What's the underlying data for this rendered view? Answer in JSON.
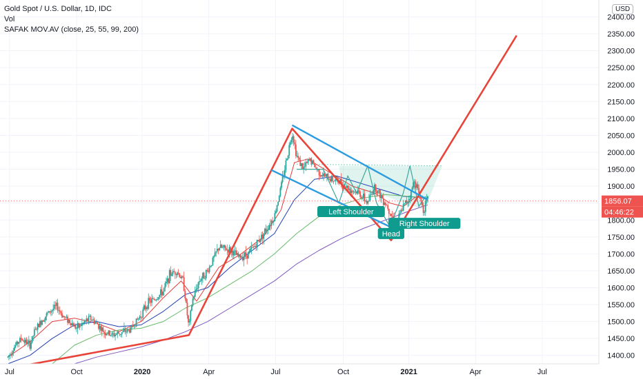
{
  "header": {
    "symbol_line": "Gold Spot / U.S. Dollar, 1D, IDC",
    "vol_label": "Vol",
    "indicator_line": "SAFAK  MOV.AV (close, 25, 55, 99, 200)",
    "currency": "USD"
  },
  "colors": {
    "up_candle": "#26a69a",
    "down_candle": "#ef5350",
    "ma25": "#e53935",
    "ma55": "#1e3fb5",
    "ma99": "#66bb6a",
    "ma200": "#7e57c2",
    "trend_line": "#e8443a",
    "channel_line": "#2b9be0",
    "pattern_fill": "#7fd1c1",
    "label_bg": "#0f9b8e",
    "price_tag": "#ef5350"
  },
  "chart_data": {
    "type": "candlestick",
    "ylim": [
      1375,
      2450
    ],
    "y_ticks": [
      1400,
      1450,
      1500,
      1550,
      1600,
      1650,
      1700,
      1750,
      1800,
      1850,
      1900,
      1950,
      2000,
      2050,
      2100,
      2150,
      2200,
      2250,
      2300,
      2350,
      2400
    ],
    "x_ticks": [
      {
        "label": "Jul",
        "t": 0.08
      },
      {
        "label": "Oct",
        "t": 3.1
      },
      {
        "label": "2020",
        "t": 6.05
      },
      {
        "label": "Apr",
        "t": 9.05
      },
      {
        "label": "Jul",
        "t": 12.05
      },
      {
        "label": "Oct",
        "t": 15.1
      },
      {
        "label": "2021",
        "t": 18.05
      },
      {
        "label": "Apr",
        "t": 21.05
      },
      {
        "label": "Jul",
        "t": 24.05
      }
    ],
    "xlim": [
      -0.35,
      26.6
    ],
    "last_price": "1856.07",
    "countdown": "04:46:22",
    "price_path": [
      [
        0.0,
        1395
      ],
      [
        0.35,
        1430
      ],
      [
        0.6,
        1450
      ],
      [
        1.0,
        1430
      ],
      [
        1.2,
        1470
      ],
      [
        1.6,
        1510
      ],
      [
        1.9,
        1530
      ],
      [
        2.2,
        1545
      ],
      [
        2.5,
        1515
      ],
      [
        2.8,
        1500
      ],
      [
        3.1,
        1480
      ],
      [
        3.4,
        1495
      ],
      [
        3.7,
        1510
      ],
      [
        4.0,
        1495
      ],
      [
        4.3,
        1470
      ],
      [
        4.7,
        1460
      ],
      [
        5.0,
        1465
      ],
      [
        5.5,
        1475
      ],
      [
        6.0,
        1520
      ],
      [
        6.3,
        1555
      ],
      [
        6.7,
        1570
      ],
      [
        7.0,
        1590
      ],
      [
        7.3,
        1640
      ],
      [
        7.6,
        1650
      ],
      [
        7.9,
        1620
      ],
      [
        8.15,
        1480
      ],
      [
        8.3,
        1560
      ],
      [
        8.6,
        1620
      ],
      [
        9.0,
        1650
      ],
      [
        9.5,
        1720
      ],
      [
        10.0,
        1710
      ],
      [
        10.4,
        1690
      ],
      [
        10.8,
        1700
      ],
      [
        11.2,
        1730
      ],
      [
        11.6,
        1770
      ],
      [
        12.0,
        1810
      ],
      [
        12.3,
        1900
      ],
      [
        12.55,
        1980
      ],
      [
        12.8,
        2060
      ],
      [
        13.0,
        1990
      ],
      [
        13.3,
        1950
      ],
      [
        13.6,
        1980
      ],
      [
        13.9,
        1950
      ],
      [
        14.2,
        1930
      ],
      [
        14.6,
        1920
      ],
      [
        15.0,
        1910
      ],
      [
        15.4,
        1890
      ],
      [
        15.8,
        1880
      ],
      [
        16.2,
        1850
      ],
      [
        16.5,
        1900
      ],
      [
        16.8,
        1870
      ],
      [
        17.1,
        1840
      ],
      [
        17.3,
        1810
      ],
      [
        17.5,
        1790
      ],
      [
        17.8,
        1840
      ],
      [
        18.1,
        1870
      ],
      [
        18.3,
        1920
      ],
      [
        18.5,
        1880
      ],
      [
        18.7,
        1830
      ],
      [
        18.9,
        1860
      ]
    ],
    "moving_averages": [
      {
        "name": "25",
        "points": [
          [
            0.0,
            1395
          ],
          [
            1.0,
            1440
          ],
          [
            2.0,
            1500
          ],
          [
            3.0,
            1510
          ],
          [
            4.0,
            1495
          ],
          [
            5.0,
            1470
          ],
          [
            6.0,
            1500
          ],
          [
            7.0,
            1570
          ],
          [
            7.8,
            1620
          ],
          [
            8.5,
            1560
          ],
          [
            9.5,
            1660
          ],
          [
            10.5,
            1700
          ],
          [
            11.5,
            1750
          ],
          [
            12.3,
            1830
          ],
          [
            12.9,
            1970
          ],
          [
            13.5,
            1980
          ],
          [
            14.5,
            1940
          ],
          [
            15.5,
            1900
          ],
          [
            16.5,
            1880
          ],
          [
            17.2,
            1850
          ],
          [
            17.8,
            1840
          ],
          [
            18.4,
            1870
          ],
          [
            18.9,
            1860
          ]
        ]
      },
      {
        "name": "55",
        "points": [
          [
            0.0,
            1375
          ],
          [
            1.0,
            1400
          ],
          [
            2.0,
            1450
          ],
          [
            3.0,
            1490
          ],
          [
            4.0,
            1500
          ],
          [
            5.0,
            1485
          ],
          [
            6.0,
            1490
          ],
          [
            7.0,
            1530
          ],
          [
            8.0,
            1580
          ],
          [
            9.0,
            1600
          ],
          [
            10.0,
            1660
          ],
          [
            11.0,
            1710
          ],
          [
            12.0,
            1760
          ],
          [
            12.9,
            1860
          ],
          [
            13.8,
            1920
          ],
          [
            14.8,
            1930
          ],
          [
            15.8,
            1910
          ],
          [
            16.8,
            1890
          ],
          [
            17.8,
            1870
          ],
          [
            18.9,
            1865
          ]
        ]
      },
      {
        "name": "99",
        "points": [
          [
            2.0,
            1375
          ],
          [
            3.0,
            1430
          ],
          [
            4.0,
            1460
          ],
          [
            5.0,
            1475
          ],
          [
            6.0,
            1480
          ],
          [
            7.0,
            1500
          ],
          [
            8.0,
            1540
          ],
          [
            9.0,
            1570
          ],
          [
            10.0,
            1610
          ],
          [
            11.0,
            1650
          ],
          [
            12.0,
            1700
          ],
          [
            13.0,
            1760
          ],
          [
            14.0,
            1810
          ],
          [
            15.0,
            1845
          ],
          [
            16.0,
            1865
          ],
          [
            17.0,
            1875
          ],
          [
            18.0,
            1870
          ],
          [
            18.9,
            1865
          ]
        ]
      },
      {
        "name": "200",
        "points": [
          [
            3.0,
            1375
          ],
          [
            4.0,
            1395
          ],
          [
            5.0,
            1410
          ],
          [
            6.0,
            1425
          ],
          [
            7.0,
            1445
          ],
          [
            8.0,
            1470
          ],
          [
            9.0,
            1500
          ],
          [
            10.0,
            1540
          ],
          [
            11.0,
            1580
          ],
          [
            12.0,
            1620
          ],
          [
            13.0,
            1670
          ],
          [
            14.0,
            1710
          ],
          [
            15.0,
            1745
          ],
          [
            16.0,
            1775
          ],
          [
            17.0,
            1800
          ],
          [
            18.0,
            1825
          ],
          [
            18.9,
            1845
          ]
        ]
      }
    ],
    "drawings": {
      "trend_line": [
        [
          -0.1,
          1360
        ],
        [
          8.15,
          1460
        ],
        [
          12.8,
          2070
        ],
        [
          17.25,
          1740
        ],
        [
          22.9,
          2345
        ]
      ],
      "channel_upper": [
        [
          12.8,
          2080
        ],
        [
          18.9,
          1860
        ]
      ],
      "channel_lower": [
        [
          11.85,
          1948
        ],
        [
          17.2,
          1780
        ]
      ],
      "pattern_fill": [
        [
          14.9,
          1960
        ],
        [
          16.9,
          1960
        ],
        [
          19.55,
          1960
        ],
        [
          18.75,
          1830
        ],
        [
          16.6,
          1880
        ],
        [
          15.1,
          1880
        ]
      ],
      "pattern_zigzag": [
        [
          13.0,
          1950
        ],
        [
          14.2,
          1950
        ],
        [
          14.9,
          1850
        ],
        [
          15.3,
          1930
        ],
        [
          15.7,
          1880
        ],
        [
          16.2,
          1960
        ],
        [
          16.6,
          1850
        ],
        [
          17.2,
          1780
        ],
        [
          17.8,
          1880
        ],
        [
          18.1,
          1960
        ],
        [
          18.5,
          1840
        ],
        [
          18.8,
          1870
        ]
      ],
      "support_top": [
        [
          13.0,
          1965
        ],
        [
          19.55,
          1960
        ]
      ]
    },
    "annotations": [
      {
        "label": "Left Shoulder",
        "t": 15.45,
        "y": 1825
      },
      {
        "label": "Head",
        "t": 17.25,
        "y": 1760
      },
      {
        "label": "Right Shoulder",
        "t": 18.75,
        "y": 1790
      }
    ]
  }
}
